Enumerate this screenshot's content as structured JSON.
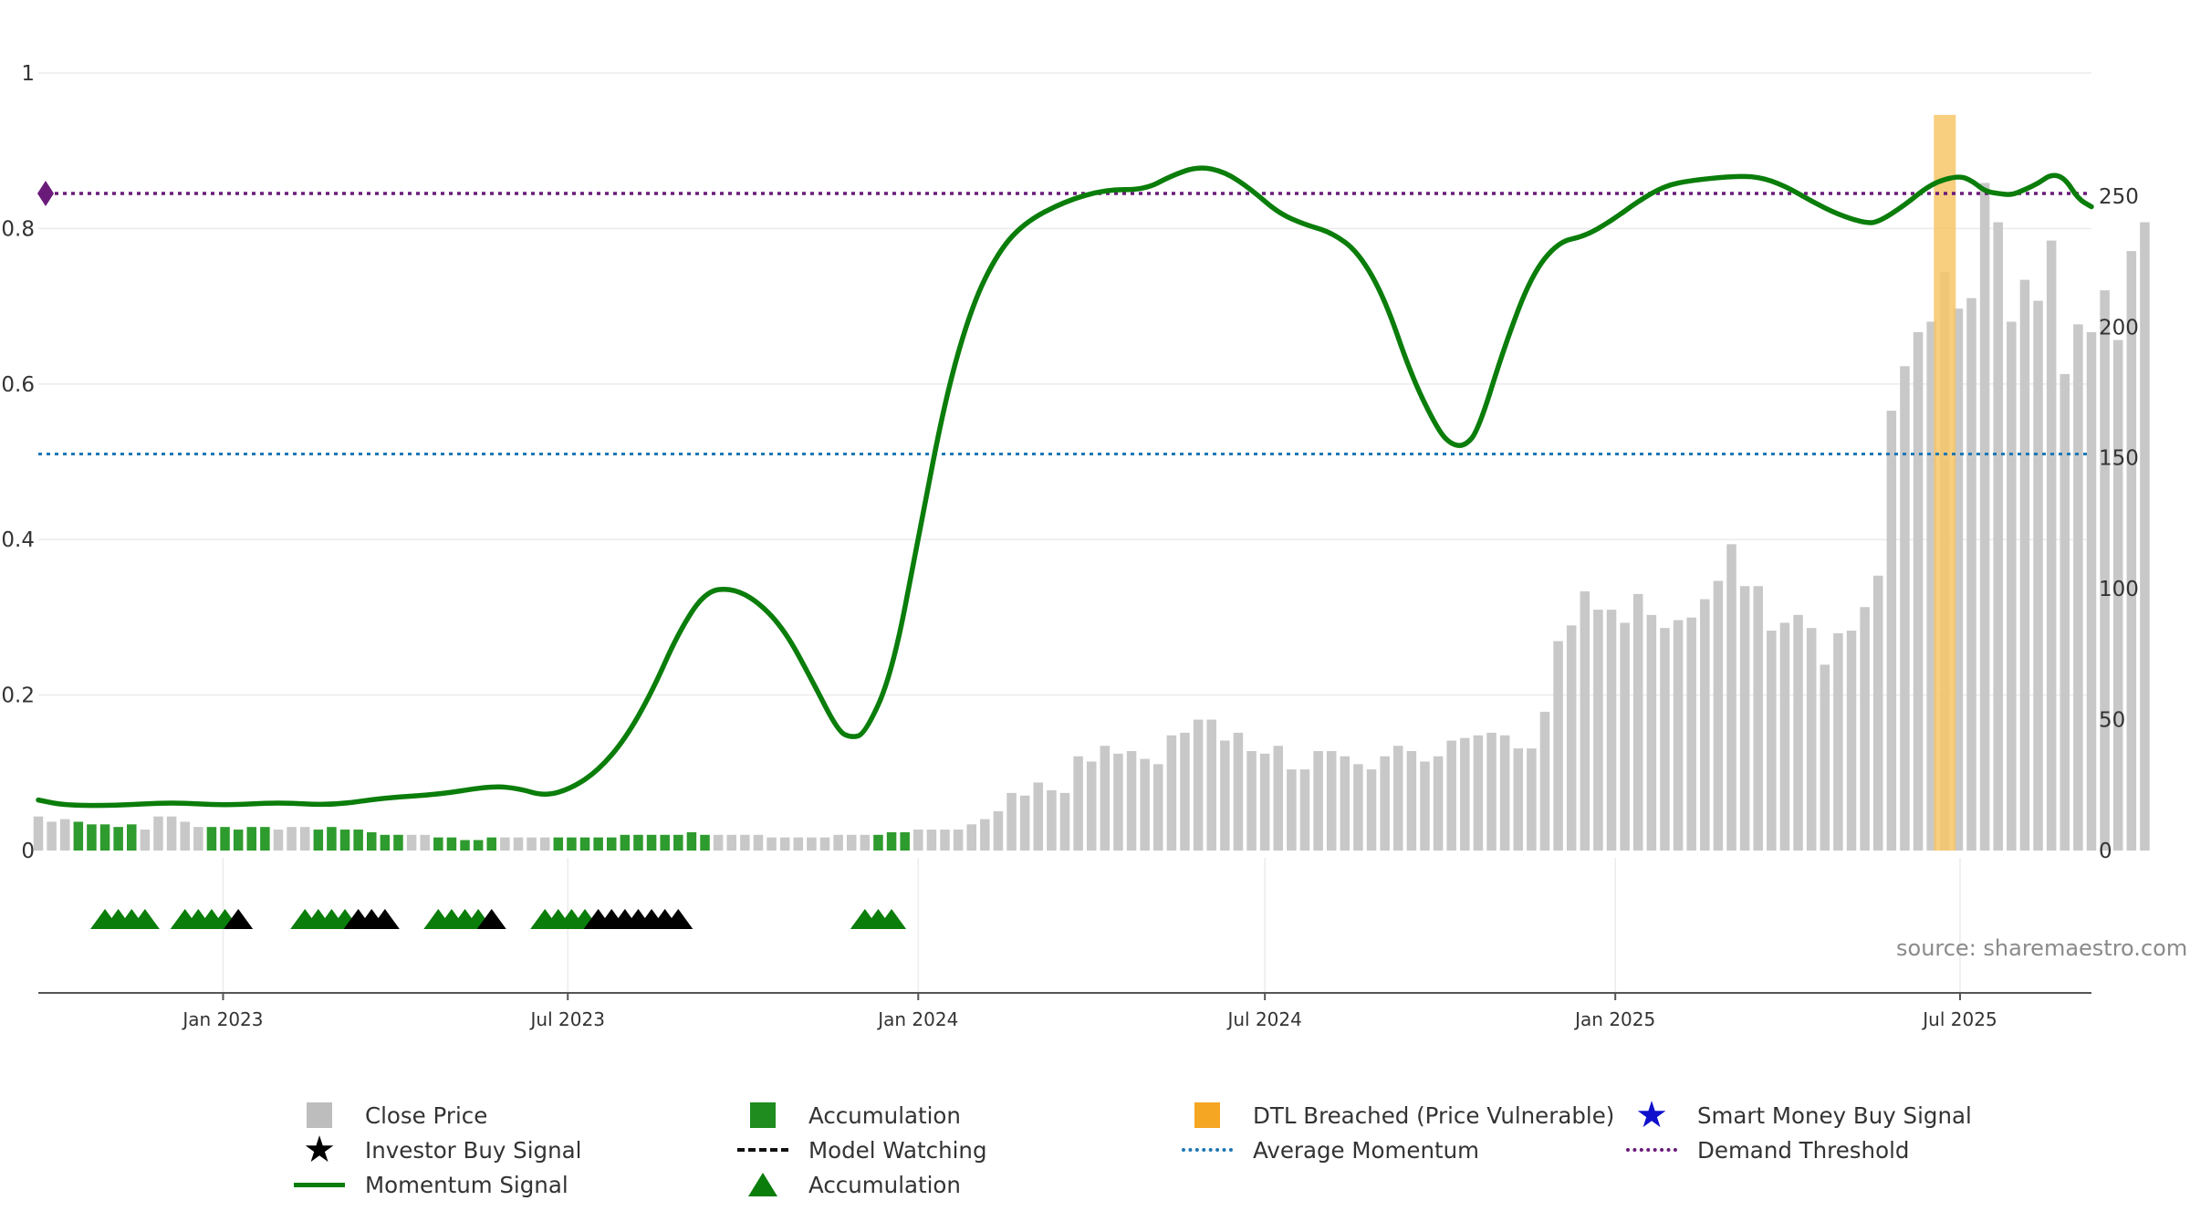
{
  "source": "source: sharemaestro.com",
  "colors": {
    "price_bar": "#c8c8c8",
    "accumulation_bar": "#2e9b2e",
    "momentum": "#0a7d0a",
    "average": "#1f77b4",
    "demand": "#6a1b7a",
    "dtl": "#f7c568",
    "investor": "#000000",
    "smart_money": "#1010cc",
    "triangle": "#0a7d0a"
  },
  "legend": [
    {
      "label": "Close Price",
      "symbol": "square",
      "color": "#bdbdbd",
      "icon": "close-price-swatch"
    },
    {
      "label": "Accumulation",
      "symbol": "square",
      "color": "#1e8c1e",
      "icon": "accumulation-swatch"
    },
    {
      "label": "DTL Breached (Price Vulnerable)",
      "symbol": "square",
      "color": "#f5a623",
      "icon": "dtl-swatch"
    },
    {
      "label": "Smart Money Buy Signal",
      "symbol": "star",
      "color": "#1010cc",
      "icon": "blue-star-icon"
    },
    {
      "label": "Investor Buy Signal",
      "symbol": "star",
      "color": "#000000",
      "icon": "black-star-icon"
    },
    {
      "label": "Model Watching",
      "symbol": "dashed",
      "color": "#111111",
      "icon": "dashed-line-icon"
    },
    {
      "label": "Average Momentum",
      "symbol": "dotted",
      "color": "#1f77b4",
      "icon": "dotted-line-icon"
    },
    {
      "label": "Demand Threshold",
      "symbol": "dotted",
      "color": "#6a1b7a",
      "icon": "dotted-line-icon"
    },
    {
      "label": "Momentum Signal",
      "symbol": "solid",
      "color": "#0a7d0a",
      "icon": "solid-line-icon"
    },
    {
      "label": "Accumulation",
      "symbol": "triangle",
      "color": "#0a7d0a",
      "icon": "triangle-icon"
    }
  ],
  "chart_data": {
    "type": "bar",
    "x_axis": {
      "type": "date",
      "range": [
        "2022-09-26",
        "2025-09-08"
      ],
      "ticks": [
        {
          "date": "2023-01-01",
          "label": "Jan 2023"
        },
        {
          "date": "2023-07-01",
          "label": "Jul 2023"
        },
        {
          "date": "2024-01-01",
          "label": "Jan 2024"
        },
        {
          "date": "2024-07-01",
          "label": "Jul 2024"
        },
        {
          "date": "2025-01-01",
          "label": "Jan 2025"
        },
        {
          "date": "2025-07-01",
          "label": "Jul 2025"
        }
      ]
    },
    "y_left": {
      "ylim": [
        0,
        1
      ],
      "ticks": [
        {
          "v": 0,
          "label": "0"
        },
        {
          "v": 0.2,
          "label": "0.2"
        },
        {
          "v": 0.4,
          "label": "0.4"
        },
        {
          "v": 0.6,
          "label": "0.6"
        },
        {
          "v": 0.8,
          "label": "0.8"
        },
        {
          "v": 1,
          "label": "1"
        }
      ]
    },
    "y_right": {
      "ylim": [
        0,
        297
      ],
      "ticks": [
        {
          "v": 0,
          "label": "0"
        },
        {
          "v": 50,
          "label": "50"
        },
        {
          "v": 100,
          "label": "100"
        },
        {
          "v": 150,
          "label": "150"
        },
        {
          "v": 200,
          "label": "200"
        },
        {
          "v": 250,
          "label": "250"
        }
      ]
    },
    "gridlines": true,
    "legend_position": "bottom",
    "price_series": {
      "name": "Close Price",
      "start": "2022-09-26",
      "interval_days": 7,
      "values": [
        13,
        11,
        12,
        11,
        10,
        10,
        9,
        10,
        8,
        13,
        13,
        11,
        9,
        9,
        9,
        8,
        9,
        9,
        8,
        9,
        9,
        8,
        9,
        8,
        8,
        7,
        6,
        6,
        6,
        6,
        5,
        5,
        4,
        4,
        5,
        5,
        5,
        5,
        5,
        5,
        5,
        5,
        5,
        5,
        6,
        6,
        6,
        6,
        6,
        7,
        6,
        6,
        6,
        6,
        6,
        5,
        5,
        5,
        5,
        5,
        6,
        6,
        6,
        6,
        7,
        7,
        8,
        8,
        8,
        8,
        10,
        12,
        15,
        22,
        21,
        26,
        23,
        22,
        36,
        34,
        40,
        37,
        38,
        35,
        33,
        44,
        45,
        50,
        50,
        42,
        45,
        38,
        37,
        40,
        31,
        31,
        38,
        38,
        36,
        33,
        31,
        36,
        40,
        38,
        34,
        36,
        42,
        43,
        44,
        45,
        44,
        39,
        39,
        53,
        80,
        86,
        99,
        92,
        92,
        87,
        98,
        90,
        85,
        88,
        89,
        96,
        103,
        117,
        101,
        101,
        84,
        87,
        90,
        85,
        71,
        83,
        84,
        93,
        105,
        168,
        185,
        198,
        202,
        221,
        207,
        211,
        255,
        240,
        202,
        218,
        210,
        233,
        182,
        201,
        198,
        214,
        195,
        229,
        240
      ],
      "accumulation_weeks": [
        3,
        4,
        5,
        6,
        7,
        13,
        14,
        15,
        16,
        17,
        21,
        22,
        23,
        24,
        25,
        26,
        27,
        30,
        31,
        32,
        33,
        34,
        39,
        40,
        41,
        42,
        43,
        44,
        45,
        46,
        47,
        48,
        49,
        50,
        63,
        64,
        65
      ]
    },
    "momentum_series": {
      "name": "Momentum Signal",
      "points": [
        {
          "x": "2022-09-26",
          "y": 0.065
        },
        {
          "x": "2022-10-10",
          "y": 0.058
        },
        {
          "x": "2022-11-07",
          "y": 0.058
        },
        {
          "x": "2022-12-05",
          "y": 0.062
        },
        {
          "x": "2023-01-02",
          "y": 0.058
        },
        {
          "x": "2023-01-30",
          "y": 0.062
        },
        {
          "x": "2023-02-27",
          "y": 0.058
        },
        {
          "x": "2023-03-27",
          "y": 0.068
        },
        {
          "x": "2023-04-24",
          "y": 0.072
        },
        {
          "x": "2023-05-22",
          "y": 0.083
        },
        {
          "x": "2023-06-05",
          "y": 0.08
        },
        {
          "x": "2023-06-19",
          "y": 0.07
        },
        {
          "x": "2023-07-03",
          "y": 0.08
        },
        {
          "x": "2023-07-17",
          "y": 0.103
        },
        {
          "x": "2023-07-31",
          "y": 0.143
        },
        {
          "x": "2023-08-14",
          "y": 0.203
        },
        {
          "x": "2023-08-28",
          "y": 0.28
        },
        {
          "x": "2023-09-11",
          "y": 0.333
        },
        {
          "x": "2023-09-25",
          "y": 0.338
        },
        {
          "x": "2023-10-09",
          "y": 0.32
        },
        {
          "x": "2023-10-23",
          "y": 0.283
        },
        {
          "x": "2023-11-06",
          "y": 0.22
        },
        {
          "x": "2023-11-20",
          "y": 0.153
        },
        {
          "x": "2023-11-27",
          "y": 0.145
        },
        {
          "x": "2023-12-04",
          "y": 0.15
        },
        {
          "x": "2023-12-18",
          "y": 0.225
        },
        {
          "x": "2024-01-01",
          "y": 0.4
        },
        {
          "x": "2024-01-15",
          "y": 0.58
        },
        {
          "x": "2024-01-29",
          "y": 0.7
        },
        {
          "x": "2024-02-12",
          "y": 0.77
        },
        {
          "x": "2024-02-26",
          "y": 0.808
        },
        {
          "x": "2024-03-18",
          "y": 0.835
        },
        {
          "x": "2024-04-08",
          "y": 0.85
        },
        {
          "x": "2024-04-29",
          "y": 0.85
        },
        {
          "x": "2024-05-13",
          "y": 0.868
        },
        {
          "x": "2024-05-27",
          "y": 0.88
        },
        {
          "x": "2024-06-10",
          "y": 0.873
        },
        {
          "x": "2024-06-24",
          "y": 0.85
        },
        {
          "x": "2024-07-08",
          "y": 0.82
        },
        {
          "x": "2024-07-22",
          "y": 0.805
        },
        {
          "x": "2024-08-05",
          "y": 0.795
        },
        {
          "x": "2024-08-19",
          "y": 0.77
        },
        {
          "x": "2024-09-02",
          "y": 0.71
        },
        {
          "x": "2024-09-16",
          "y": 0.61
        },
        {
          "x": "2024-09-30",
          "y": 0.54
        },
        {
          "x": "2024-10-07",
          "y": 0.522
        },
        {
          "x": "2024-10-14",
          "y": 0.52
        },
        {
          "x": "2024-10-21",
          "y": 0.54
        },
        {
          "x": "2024-11-04",
          "y": 0.65
        },
        {
          "x": "2024-11-18",
          "y": 0.74
        },
        {
          "x": "2024-12-02",
          "y": 0.783
        },
        {
          "x": "2024-12-16",
          "y": 0.79
        },
        {
          "x": "2024-12-30",
          "y": 0.81
        },
        {
          "x": "2025-01-13",
          "y": 0.835
        },
        {
          "x": "2025-01-27",
          "y": 0.855
        },
        {
          "x": "2025-02-10",
          "y": 0.862
        },
        {
          "x": "2025-03-03",
          "y": 0.867
        },
        {
          "x": "2025-03-17",
          "y": 0.867
        },
        {
          "x": "2025-03-31",
          "y": 0.855
        },
        {
          "x": "2025-04-14",
          "y": 0.835
        },
        {
          "x": "2025-04-28",
          "y": 0.818
        },
        {
          "x": "2025-05-12",
          "y": 0.807
        },
        {
          "x": "2025-05-19",
          "y": 0.808
        },
        {
          "x": "2025-06-02",
          "y": 0.83
        },
        {
          "x": "2025-06-16",
          "y": 0.858
        },
        {
          "x": "2025-06-30",
          "y": 0.868
        },
        {
          "x": "2025-07-07",
          "y": 0.862
        },
        {
          "x": "2025-07-14",
          "y": 0.848
        },
        {
          "x": "2025-07-21",
          "y": 0.845
        },
        {
          "x": "2025-07-28",
          "y": 0.843
        },
        {
          "x": "2025-08-04",
          "y": 0.85
        },
        {
          "x": "2025-08-11",
          "y": 0.858
        },
        {
          "x": "2025-08-18",
          "y": 0.87
        },
        {
          "x": "2025-08-25",
          "y": 0.865
        },
        {
          "x": "2025-09-01",
          "y": 0.838
        },
        {
          "x": "2025-09-08",
          "y": 0.828
        }
      ]
    },
    "average_momentum": {
      "name": "Average Momentum",
      "value": 0.51
    },
    "demand_threshold": {
      "name": "Demand Threshold",
      "value": 0.845
    },
    "dtl_breached": {
      "name": "DTL Breached (Price Vulnerable)",
      "date": "2025-06-23",
      "value": 281
    },
    "signal_markers": [
      {
        "date": "2022-10-31",
        "kind": "accumulation"
      },
      {
        "date": "2022-11-07",
        "kind": "accumulation"
      },
      {
        "date": "2022-11-14",
        "kind": "accumulation"
      },
      {
        "date": "2022-11-21",
        "kind": "accumulation"
      },
      {
        "date": "2022-12-12",
        "kind": "accumulation"
      },
      {
        "date": "2022-12-19",
        "kind": "accumulation"
      },
      {
        "date": "2022-12-26",
        "kind": "accumulation"
      },
      {
        "date": "2023-01-02",
        "kind": "accumulation"
      },
      {
        "date": "2023-01-09",
        "kind": "investor"
      },
      {
        "date": "2023-02-13",
        "kind": "accumulation"
      },
      {
        "date": "2023-02-20",
        "kind": "accumulation"
      },
      {
        "date": "2023-02-27",
        "kind": "accumulation"
      },
      {
        "date": "2023-03-06",
        "kind": "accumulation"
      },
      {
        "date": "2023-03-13",
        "kind": "investor"
      },
      {
        "date": "2023-03-20",
        "kind": "investor"
      },
      {
        "date": "2023-03-27",
        "kind": "investor"
      },
      {
        "date": "2023-04-24",
        "kind": "accumulation"
      },
      {
        "date": "2023-05-01",
        "kind": "accumulation"
      },
      {
        "date": "2023-05-08",
        "kind": "accumulation"
      },
      {
        "date": "2023-05-15",
        "kind": "accumulation"
      },
      {
        "date": "2023-05-22",
        "kind": "investor"
      },
      {
        "date": "2023-06-19",
        "kind": "accumulation"
      },
      {
        "date": "2023-06-26",
        "kind": "accumulation"
      },
      {
        "date": "2023-07-03",
        "kind": "accumulation"
      },
      {
        "date": "2023-07-10",
        "kind": "accumulation"
      },
      {
        "date": "2023-07-17",
        "kind": "investor"
      },
      {
        "date": "2023-07-24",
        "kind": "investor"
      },
      {
        "date": "2023-07-31",
        "kind": "investor"
      },
      {
        "date": "2023-08-07",
        "kind": "investor"
      },
      {
        "date": "2023-08-14",
        "kind": "investor"
      },
      {
        "date": "2023-08-21",
        "kind": "investor"
      },
      {
        "date": "2023-08-28",
        "kind": "investor"
      },
      {
        "date": "2023-12-04",
        "kind": "accumulation"
      },
      {
        "date": "2023-12-11",
        "kind": "accumulation"
      },
      {
        "date": "2023-12-18",
        "kind": "accumulation"
      }
    ],
    "model_watching_marker": {
      "date": "2022-09-26",
      "value": 0.845
    }
  }
}
